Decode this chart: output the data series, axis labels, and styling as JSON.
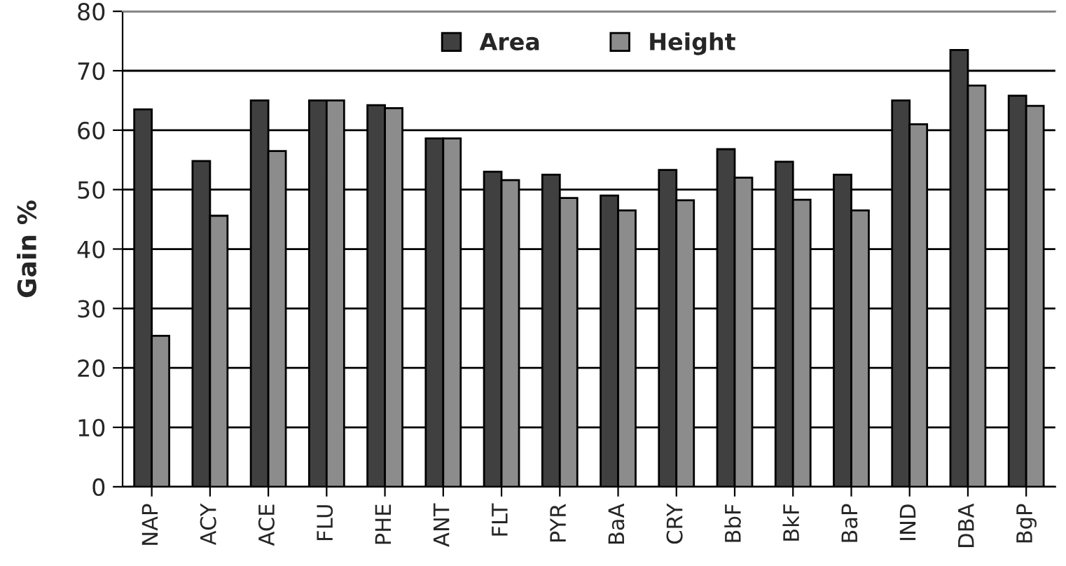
{
  "chart_data": {
    "type": "bar",
    "ylabel": "Gain %",
    "categories": [
      "NAP",
      "ACY",
      "ACE",
      "FLU",
      "PHE",
      "ANT",
      "FLT",
      "PYR",
      "BaA",
      "CRY",
      "BbF",
      "BkF",
      "BaP",
      "IND",
      "DBA",
      "BgP"
    ],
    "series": [
      {
        "name": "Area",
        "color": "#404040",
        "values": [
          63.5,
          54.8,
          65,
          65,
          64.2,
          58.6,
          53,
          52.5,
          49,
          53.3,
          56.8,
          54.7,
          52.5,
          65,
          73.5,
          65.8
        ]
      },
      {
        "name": "Height",
        "color": "#8c8c8c",
        "values": [
          25.4,
          45.6,
          56.5,
          65,
          63.7,
          58.6,
          51.6,
          48.6,
          46.5,
          48.2,
          52,
          48.3,
          46.5,
          61,
          67.5,
          64.1
        ]
      }
    ],
    "ylim": [
      0,
      80
    ],
    "yticks": [
      0,
      10,
      20,
      30,
      40,
      50,
      60,
      70,
      80
    ],
    "grid": "y",
    "legend": "top"
  }
}
